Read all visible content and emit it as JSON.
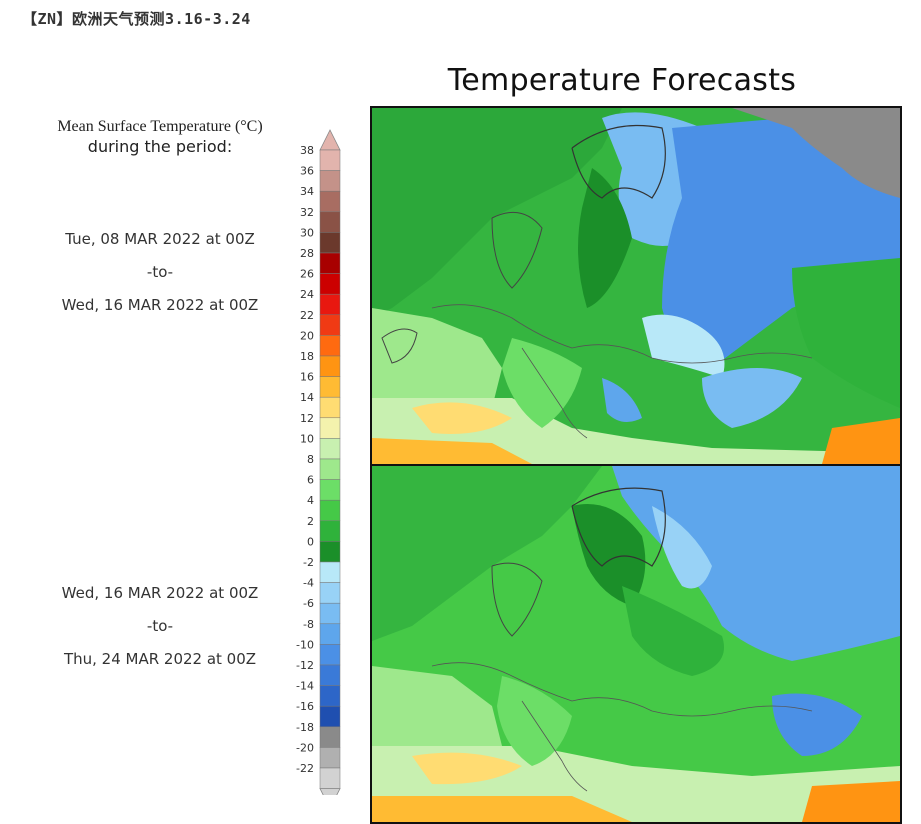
{
  "header": {
    "title": "【ZN】欧洲天气预测3.16-3.24"
  },
  "main_title": "Temperature Forecasts",
  "legend": {
    "title_line1": "Mean Surface Temperature (°C)",
    "title_line2": "during the period:",
    "ticks": [
      "38",
      "36",
      "34",
      "32",
      "30",
      "28",
      "26",
      "24",
      "22",
      "20",
      "18",
      "16",
      "14",
      "12",
      "10",
      "8",
      "6",
      "4",
      "2",
      "0",
      "-2",
      "-4",
      "-6",
      "-8",
      "-10",
      "-12",
      "-14",
      "-16",
      "-18",
      "-20",
      "-22"
    ],
    "colors": [
      "#e2b4ad",
      "#c49289",
      "#a86d62",
      "#8a5246",
      "#6b392c",
      "#a80000",
      "#cc0000",
      "#e81810",
      "#f03a14",
      "#ff6a10",
      "#ff9412",
      "#ffbb33",
      "#ffdc72",
      "#f4f2ad",
      "#c8f0b0",
      "#9ee88c",
      "#6cde67",
      "#45c947",
      "#2fb23b",
      "#1b8f29",
      "#b8e8f8",
      "#98d2f6",
      "#79bcf2",
      "#5ea6ec",
      "#4b90e6",
      "#3a7ad8",
      "#2d66c8",
      "#1f4fb0",
      "#8a8a8a",
      "#b0b0b0",
      "#d2d2d2"
    ]
  },
  "period1": {
    "start": "Tue, 08 MAR 2022 at 00Z",
    "sep": "-to-",
    "end": "Wed, 16 MAR 2022 at 00Z"
  },
  "period2": {
    "start": "Wed, 16 MAR 2022 at 00Z",
    "sep": "-to-",
    "end": "Thu, 24 MAR 2022 at 00Z"
  }
}
